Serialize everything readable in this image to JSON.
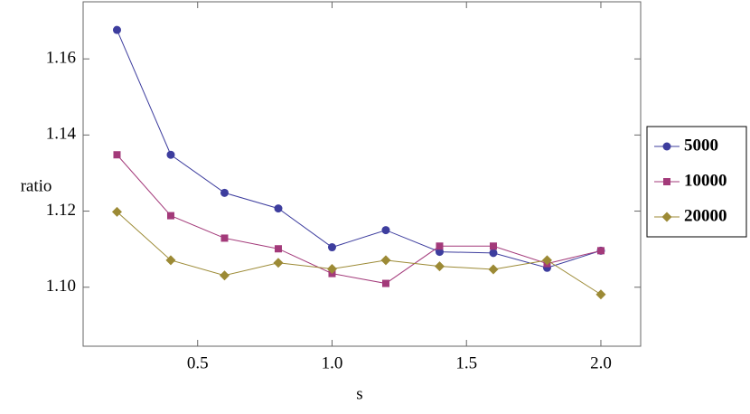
{
  "chart_data": {
    "type": "line",
    "x_label": "s",
    "y_label": "ratio",
    "x": [
      0.2,
      0.4,
      0.6,
      0.8,
      1.0,
      1.2,
      1.4,
      1.6,
      1.8,
      2.0
    ],
    "series": [
      {
        "name": "5000",
        "color": "#3d3d9e",
        "marker": "circle",
        "values": [
          1.1676,
          1.1348,
          1.1248,
          1.1207,
          1.1105,
          1.115,
          1.1093,
          1.109,
          1.1051,
          1.1096
        ]
      },
      {
        "name": "10000",
        "color": "#a33a7a",
        "marker": "square",
        "values": [
          1.1348,
          1.1188,
          1.1129,
          1.1101,
          1.1036,
          1.101,
          1.1108,
          1.1108,
          1.1062,
          1.1096
        ]
      },
      {
        "name": "20000",
        "color": "#9c8a35",
        "marker": "diamond",
        "values": [
          1.1198,
          1.1071,
          1.1031,
          1.1064,
          1.1048,
          1.1071,
          1.1055,
          1.1047,
          1.1071,
          1.0981
        ]
      }
    ],
    "xlim": [
      0.074,
      2.148
    ],
    "ylim": [
      1.0845,
      1.175
    ],
    "xticks": [
      {
        "value": 0.5,
        "label": "0.5"
      },
      {
        "value": 1.0,
        "label": "1.0"
      },
      {
        "value": 1.5,
        "label": "1.5"
      },
      {
        "value": 2.0,
        "label": "2.0"
      }
    ],
    "yticks": [
      {
        "value": 1.1,
        "label": "1.10"
      },
      {
        "value": 1.12,
        "label": "1.12"
      },
      {
        "value": 1.14,
        "label": "1.14"
      },
      {
        "value": 1.16,
        "label": "1.16"
      }
    ],
    "legend": "right"
  }
}
